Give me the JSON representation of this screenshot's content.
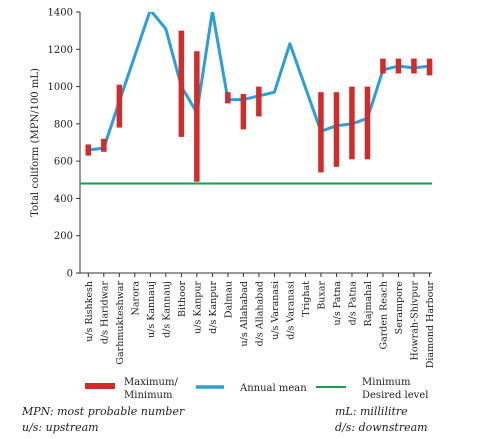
{
  "chart_data": {
    "type": "line",
    "ylabel": "Total coliform (MPN/100 mL)",
    "ylim": [
      0,
      1400
    ],
    "yticks": [
      0,
      200,
      400,
      600,
      800,
      1000,
      1200,
      1400
    ],
    "categories": [
      "u/s Rishkesh",
      "d/s Haridwar",
      "Garhmukteshwar",
      "Narora",
      "u/s Kannauj",
      "d/s Kannauj",
      "Bithoor",
      "u/s Kanpur",
      "d/s Kanpur",
      "Dalmau",
      "u/s Allahabad",
      "d/s Allahabad",
      "u/s Varanasi",
      "d/s Varanasi",
      "Trighat",
      "Buxar",
      "u/s Patna",
      "d/s Patna",
      "Rajmahal",
      "Garden Reach",
      "Serampore",
      "Howrah-Shivpur",
      "Diamond Harbour"
    ],
    "series": [
      {
        "name": "Annual mean",
        "type": "line",
        "color": "#2b9fd8",
        "values": [
          660,
          670,
          920,
          null,
          1410,
          1310,
          1000,
          860,
          1405,
          930,
          930,
          950,
          970,
          1230,
          null,
          760,
          790,
          800,
          830,
          1090,
          1110,
          1100,
          1110
        ]
      },
      {
        "name": "Maximum/ Minimum",
        "type": "range",
        "color": "#d42a2a",
        "ranges": [
          [
            630,
            690
          ],
          [
            650,
            720
          ],
          [
            780,
            1010
          ],
          null,
          null,
          null,
          [
            730,
            1300
          ],
          [
            490,
            1190
          ],
          null,
          [
            910,
            970
          ],
          [
            770,
            960
          ],
          [
            840,
            1000
          ],
          null,
          null,
          null,
          [
            540,
            970
          ],
          [
            570,
            970
          ],
          [
            610,
            1000
          ],
          [
            610,
            1000
          ],
          [
            1070,
            1150
          ],
          [
            1070,
            1150
          ],
          [
            1070,
            1150
          ],
          [
            1060,
            1150
          ]
        ]
      },
      {
        "name": "Minimum Desired level",
        "type": "hline",
        "color": "#1e9a4a",
        "value": 480
      }
    ],
    "grid": false,
    "legend_position": "bottom"
  },
  "legend": {
    "maxmin_label_line1": "Maximum/",
    "maxmin_label_line2": "Minimum",
    "mean_label": "Annual mean",
    "desired_label_line1": "Minimum",
    "desired_label_line2": "Desired level"
  },
  "footnotes": {
    "mpn": "MPN: most probable number",
    "us": "u/s: upstream",
    "ml": "mL: millilitre",
    "ds": "d/s: downstream"
  }
}
